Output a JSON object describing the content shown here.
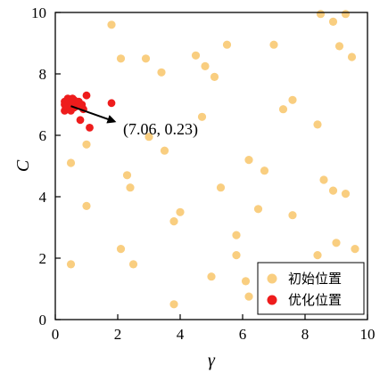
{
  "chart_data": {
    "type": "scatter",
    "title": "",
    "xlabel": "γ",
    "ylabel": "C",
    "xlim": [
      0,
      10
    ],
    "ylim": [
      0,
      10
    ],
    "xticks": [
      "0",
      "2",
      "4",
      "6",
      "8",
      "10"
    ],
    "yticks": [
      "0",
      "2",
      "4",
      "6",
      "8",
      "10"
    ],
    "grid": false,
    "legend": {
      "placement": "bottom-right"
    },
    "annotation": {
      "text": "(7.06, 0.23)",
      "arrow_from": [
        0.5,
        6.95
      ],
      "arrow_to": [
        1.9,
        6.45
      ]
    },
    "series": [
      {
        "name": "初始位置",
        "color": "#F9CE80",
        "points": [
          [
            1.8,
            9.6
          ],
          [
            2.1,
            8.5
          ],
          [
            2.9,
            8.5
          ],
          [
            3.4,
            8.05
          ],
          [
            4.5,
            8.6
          ],
          [
            4.8,
            8.25
          ],
          [
            5.1,
            7.9
          ],
          [
            5.5,
            8.95
          ],
          [
            7.0,
            8.95
          ],
          [
            8.5,
            9.95
          ],
          [
            8.9,
            9.7
          ],
          [
            9.1,
            8.9
          ],
          [
            9.3,
            9.95
          ],
          [
            9.5,
            8.55
          ],
          [
            7.6,
            7.15
          ],
          [
            7.3,
            6.85
          ],
          [
            8.4,
            6.35
          ],
          [
            4.7,
            6.6
          ],
          [
            3.0,
            5.95
          ],
          [
            3.5,
            5.5
          ],
          [
            1.0,
            5.7
          ],
          [
            0.5,
            5.1
          ],
          [
            2.3,
            4.7
          ],
          [
            2.4,
            4.3
          ],
          [
            1.0,
            3.7
          ],
          [
            3.8,
            3.2
          ],
          [
            4.0,
            3.5
          ],
          [
            5.3,
            4.3
          ],
          [
            6.2,
            5.2
          ],
          [
            6.7,
            4.85
          ],
          [
            6.5,
            3.6
          ],
          [
            7.6,
            3.4
          ],
          [
            8.6,
            4.55
          ],
          [
            8.9,
            4.2
          ],
          [
            9.3,
            4.1
          ],
          [
            5.8,
            2.75
          ],
          [
            5.8,
            2.1
          ],
          [
            6.1,
            1.25
          ],
          [
            6.2,
            0.75
          ],
          [
            2.1,
            2.3
          ],
          [
            2.5,
            1.8
          ],
          [
            0.5,
            1.8
          ],
          [
            3.8,
            0.5
          ],
          [
            5.0,
            1.4
          ],
          [
            8.4,
            2.1
          ],
          [
            9.0,
            2.5
          ],
          [
            9.6,
            2.3
          ]
        ]
      },
      {
        "name": "优化位置",
        "color": "#EE1C1C",
        "points": [
          [
            0.3,
            6.8
          ],
          [
            0.35,
            7.05
          ],
          [
            0.4,
            6.9
          ],
          [
            0.45,
            7.15
          ],
          [
            0.5,
            6.95
          ],
          [
            0.55,
            7.1
          ],
          [
            0.6,
            7.0
          ],
          [
            0.4,
            7.2
          ],
          [
            0.3,
            7.0
          ],
          [
            0.6,
            7.15
          ],
          [
            0.7,
            6.95
          ],
          [
            0.65,
            7.05
          ],
          [
            0.5,
            6.8
          ],
          [
            0.45,
            6.85
          ],
          [
            0.75,
            7.1
          ],
          [
            0.35,
            6.95
          ],
          [
            0.55,
            7.2
          ],
          [
            0.5,
            7.05
          ],
          [
            0.4,
            7.0
          ],
          [
            0.85,
            7.0
          ],
          [
            0.9,
            6.85
          ],
          [
            0.8,
            6.5
          ],
          [
            1.0,
            7.3
          ],
          [
            1.1,
            6.25
          ],
          [
            1.8,
            7.05
          ],
          [
            0.3,
            7.1
          ],
          [
            0.6,
            6.9
          ]
        ]
      }
    ]
  }
}
